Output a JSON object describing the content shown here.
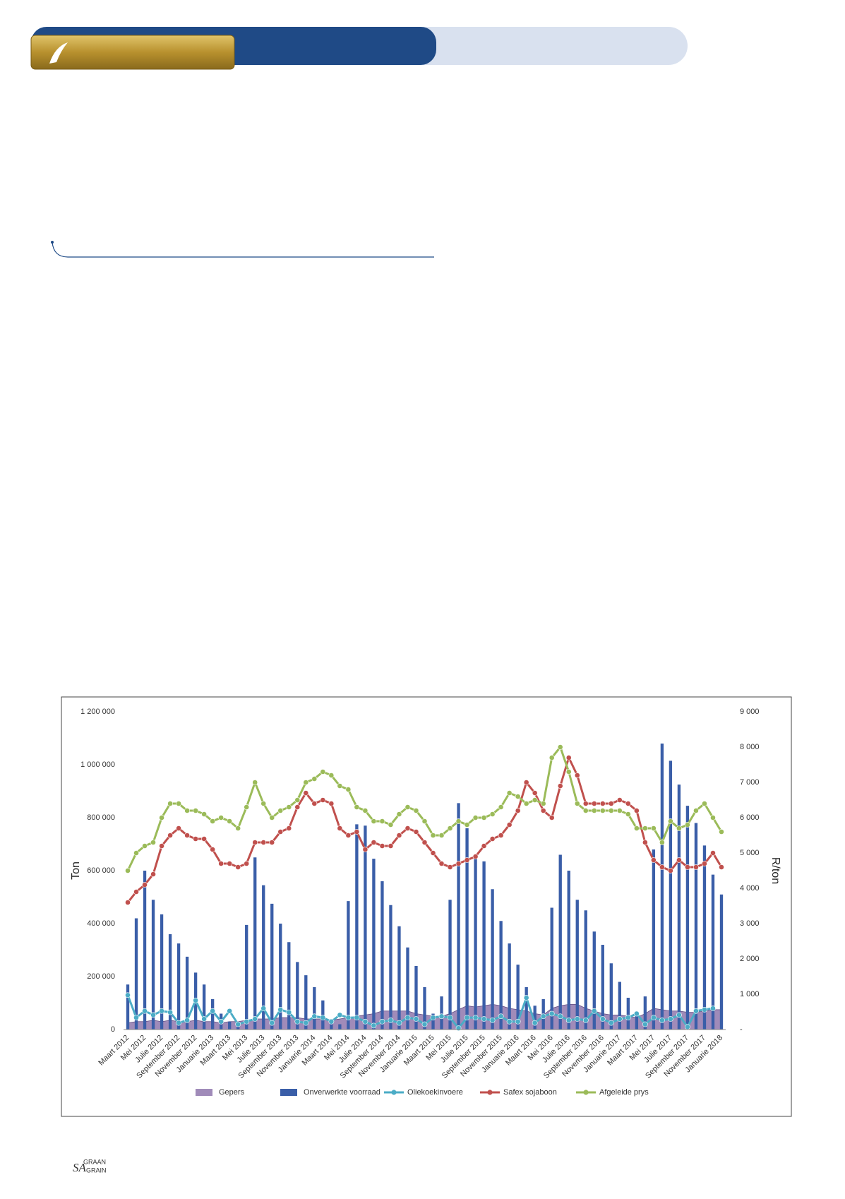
{
  "chart_data": {
    "type": "bar",
    "categories": [
      "Maart 2012",
      null,
      "Mei 2012",
      null,
      "Julie 2012",
      null,
      "September 2012",
      null,
      "November 2012",
      null,
      "Januarie 2013",
      null,
      "Maart 2013",
      null,
      "Mei 2013",
      null,
      "Julie 2013",
      null,
      "September 2013",
      null,
      "November 2013",
      null,
      "Januarie 2014",
      null,
      "Maart 2014",
      null,
      "Mei 2014",
      null,
      "Julie 2014",
      null,
      "September 2014",
      null,
      "November 2014",
      null,
      "Januarie 2015",
      null,
      "Maart 2015",
      null,
      "Mei 2015",
      null,
      "Julie 2015",
      null,
      "September 2015",
      null,
      "November 2015",
      null,
      "Januarie 2016",
      null,
      "Maart 2016",
      null,
      "Mei 2016",
      null,
      "Julie 2016",
      null,
      "September 2016",
      null,
      "November 2016",
      null,
      "Januarie 2017",
      null,
      "Maart 2017",
      null,
      "Mei 2017",
      null,
      "Julie 2017",
      null,
      "September 2017",
      null,
      "November 2017",
      null,
      "Januarie 2018"
    ],
    "series": [
      {
        "name": "Gepers",
        "type": "area",
        "color": "#8064a2",
        "values": [
          25000,
          30000,
          30000,
          35000,
          30000,
          35000,
          30000,
          30000,
          35000,
          30000,
          30000,
          25000,
          30000,
          30000,
          35000,
          40000,
          40000,
          40000,
          45000,
          45000,
          45000,
          40000,
          40000,
          40000,
          35000,
          40000,
          45000,
          50000,
          55000,
          60000,
          70000,
          70000,
          70000,
          70000,
          60000,
          55000,
          50000,
          50000,
          60000,
          75000,
          90000,
          85000,
          90000,
          95000,
          90000,
          80000,
          75000,
          70000,
          60000,
          55000,
          80000,
          90000,
          95000,
          95000,
          80000,
          70000,
          60000,
          55000,
          55000,
          50000,
          45000,
          60000,
          80000,
          75000,
          70000,
          70000,
          65000,
          65000,
          70000,
          75000,
          75000
        ]
      },
      {
        "name": "Onverwerkte voorraad",
        "type": "bar",
        "color": "#3a5ea8",
        "values": [
          170000,
          420000,
          600000,
          490000,
          435000,
          360000,
          325000,
          275000,
          215000,
          170000,
          115000,
          60000,
          30000,
          20000,
          395000,
          650000,
          545000,
          475000,
          400000,
          330000,
          255000,
          205000,
          160000,
          110000,
          40000,
          20000,
          485000,
          775000,
          770000,
          645000,
          560000,
          470000,
          390000,
          310000,
          240000,
          160000,
          60000,
          125000,
          490000,
          855000,
          760000,
          660000,
          635000,
          530000,
          410000,
          325000,
          245000,
          160000,
          90000,
          115000,
          460000,
          660000,
          600000,
          490000,
          450000,
          370000,
          320000,
          250000,
          180000,
          120000,
          60000,
          125000,
          680000,
          1080000,
          1015000,
          925000,
          845000,
          780000,
          695000,
          585000,
          510000
        ]
      },
      {
        "name": "Oliekoekinvoere",
        "type": "line",
        "color": "#4bacc6",
        "values": [
          130000,
          45000,
          70000,
          55000,
          70000,
          65000,
          25000,
          35000,
          110000,
          40000,
          70000,
          30000,
          70000,
          20000,
          30000,
          40000,
          80000,
          25000,
          75000,
          65000,
          30000,
          25000,
          50000,
          45000,
          30000,
          55000,
          45000,
          45000,
          30000,
          15000,
          30000,
          35000,
          25000,
          45000,
          40000,
          20000,
          45000,
          50000,
          45000,
          5000,
          45000,
          45000,
          40000,
          35000,
          50000,
          30000,
          30000,
          120000,
          25000,
          50000,
          60000,
          50000,
          35000,
          40000,
          35000,
          70000,
          40000,
          25000,
          40000,
          45000,
          60000,
          20000,
          45000,
          35000,
          40000,
          55000,
          10000,
          70000,
          75000,
          80000,
          null
        ]
      },
      {
        "name": "Safex sojaboon",
        "type": "line",
        "axis": "y2",
        "color": "#c0504d",
        "values": [
          3600,
          3900,
          4100,
          4400,
          5200,
          5500,
          5700,
          5500,
          5400,
          5400,
          5100,
          4700,
          4700,
          4600,
          4700,
          5300,
          5300,
          5300,
          5600,
          5700,
          6300,
          6700,
          6400,
          6500,
          6400,
          5700,
          5500,
          5600,
          5100,
          5300,
          5200,
          5200,
          5500,
          5700,
          5600,
          5300,
          5000,
          4700,
          4600,
          4700,
          4800,
          4900,
          5200,
          5400,
          5500,
          5800,
          6200,
          7000,
          6700,
          6200,
          6000,
          6900,
          7700,
          7200,
          6400,
          6400,
          6400,
          6400,
          6500,
          6400,
          6200,
          5300,
          4800,
          4600,
          4500,
          4800,
          4600,
          4600,
          4700,
          5000,
          4600
        ]
      },
      {
        "name": "Afgeleide prys",
        "type": "line",
        "axis": "y2",
        "color": "#9bbb59",
        "values": [
          4500,
          5000,
          5200,
          5300,
          6000,
          6400,
          6400,
          6200,
          6200,
          6100,
          5900,
          6000,
          5900,
          5700,
          6300,
          7000,
          6400,
          6000,
          6200,
          6300,
          6500,
          7000,
          7100,
          7300,
          7200,
          6900,
          6800,
          6300,
          6200,
          5900,
          5900,
          5800,
          6100,
          6300,
          6200,
          5900,
          5500,
          5500,
          5700,
          5900,
          5800,
          6000,
          6000,
          6100,
          6300,
          6700,
          6600,
          6400,
          6500,
          6400,
          7700,
          8000,
          7300,
          6400,
          6200,
          6200,
          6200,
          6200,
          6200,
          6100,
          5700,
          5700,
          5700,
          5300,
          5900,
          5700,
          5800,
          6200,
          6400,
          6000,
          5600
        ]
      }
    ],
    "y_label": "Ton",
    "y2_label": "R/ton",
    "ylim": [
      0,
      1200000
    ],
    "yticks": [
      0,
      {
        "value": 200000,
        "label": "200 000"
      },
      {
        "value": 400000,
        "label": "400 000"
      },
      {
        "value": 600000,
        "label": "600 000"
      },
      {
        "value": 800000,
        "label": "800 000"
      },
      {
        "value": 1000000,
        "label": "1 000 000"
      },
      {
        "value": 1200000,
        "label": "1 200 000"
      }
    ],
    "y2lim": [
      0,
      9000
    ],
    "y2ticks": [
      {
        "value": 0,
        "label": "-"
      },
      {
        "value": 1000,
        "label": "1 000"
      },
      {
        "value": 2000,
        "label": "2 000"
      },
      {
        "value": 3000,
        "label": "3 000"
      },
      {
        "value": 4000,
        "label": "4 000"
      },
      {
        "value": 5000,
        "label": "5 000"
      },
      {
        "value": 6000,
        "label": "6 000"
      },
      {
        "value": 7000,
        "label": "7 000"
      },
      {
        "value": 8000,
        "label": "8 000"
      },
      {
        "value": 9000,
        "label": "9 000"
      }
    ],
    "grid": false,
    "legend": "bottom"
  },
  "footer": {
    "logo_sa": "SA",
    "logo_top": "GRAAN",
    "logo_bottom": "GRAIN"
  }
}
